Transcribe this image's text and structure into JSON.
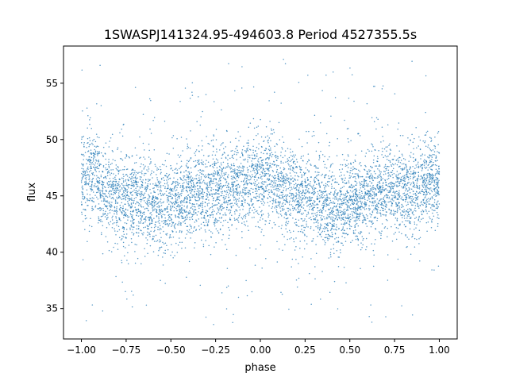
{
  "chart_data": {
    "type": "scatter",
    "title": "1SWASPJ141324.95-494603.8 Period 4527355.5s",
    "xlabel": "phase",
    "ylabel": "flux",
    "xlim": [
      -1.1,
      1.1
    ],
    "ylim": [
      32.3,
      58.3
    ],
    "xticks": [
      {
        "value": -1.0,
        "label": "−1.00"
      },
      {
        "value": -0.75,
        "label": "−0.75"
      },
      {
        "value": -0.5,
        "label": "−0.50"
      },
      {
        "value": -0.25,
        "label": "−0.25"
      },
      {
        "value": 0.0,
        "label": "0.00"
      },
      {
        "value": 0.25,
        "label": "0.25"
      },
      {
        "value": 0.5,
        "label": "0.50"
      },
      {
        "value": 0.75,
        "label": "0.75"
      },
      {
        "value": 1.0,
        "label": "1.00"
      }
    ],
    "yticks": [
      {
        "value": 35,
        "label": "35"
      },
      {
        "value": 40,
        "label": "40"
      },
      {
        "value": 45,
        "label": "45"
      },
      {
        "value": 50,
        "label": "50"
      },
      {
        "value": 55,
        "label": "55"
      }
    ],
    "grid": false,
    "legend": "none",
    "marker_color": "#1f77b4",
    "phase_range": [
      -1.0,
      1.0
    ],
    "flux_range": [
      33.5,
      57.3
    ],
    "typical_flux_band": [
      42.0,
      50.5
    ],
    "profile": [
      {
        "phase": -1.0,
        "flux": 46.3
      },
      {
        "phase": -0.95,
        "flux": 47.2
      },
      {
        "phase": -0.9,
        "flux": 46.0
      },
      {
        "phase": -0.85,
        "flux": 45.3
      },
      {
        "phase": -0.75,
        "flux": 44.8
      },
      {
        "phase": -0.6,
        "flux": 44.2
      },
      {
        "phase": -0.55,
        "flux": 44.0
      },
      {
        "phase": -0.45,
        "flux": 44.6
      },
      {
        "phase": -0.35,
        "flux": 45.5
      },
      {
        "phase": -0.25,
        "flux": 45.6
      },
      {
        "phase": -0.15,
        "flux": 45.6
      },
      {
        "phase": -0.05,
        "flux": 46.3
      },
      {
        "phase": 0.0,
        "flux": 46.3
      },
      {
        "phase": 0.05,
        "flux": 47.2
      },
      {
        "phase": 0.1,
        "flux": 46.0
      },
      {
        "phase": 0.15,
        "flux": 45.3
      },
      {
        "phase": 0.25,
        "flux": 44.8
      },
      {
        "phase": 0.4,
        "flux": 44.2
      },
      {
        "phase": 0.45,
        "flux": 44.0
      },
      {
        "phase": 0.55,
        "flux": 44.6
      },
      {
        "phase": 0.65,
        "flux": 45.5
      },
      {
        "phase": 0.75,
        "flux": 45.6
      },
      {
        "phase": 0.85,
        "flux": 45.6
      },
      {
        "phase": 0.95,
        "flux": 46.3
      },
      {
        "phase": 1.0,
        "flux": 46.3
      }
    ]
  }
}
